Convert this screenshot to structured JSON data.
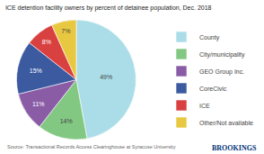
{
  "chart_data": {
    "type": "pie",
    "title": "ICE detention facility owners by percent of detainee population, Dec. 2018",
    "categories": [
      "County",
      "City/municipality",
      "GEO Group Inc.",
      "CoreCivic",
      "ICE",
      "Other/Not available"
    ],
    "values": [
      49,
      14,
      11,
      15,
      8,
      7
    ],
    "value_labels": [
      "49%",
      "14%",
      "11%",
      "15%",
      "8%",
      "7%"
    ],
    "colors": [
      "#aadde8",
      "#82c882",
      "#8b5ca6",
      "#3b5aa0",
      "#d94040",
      "#e8c840"
    ],
    "data_labels": true,
    "legend": "right",
    "annotations": [
      {
        "text": "Source: Transactional Records Access Clearinghouse at Syracuse University"
      },
      {
        "text": "BROOKINGS",
        "color": "#003478"
      }
    ]
  }
}
